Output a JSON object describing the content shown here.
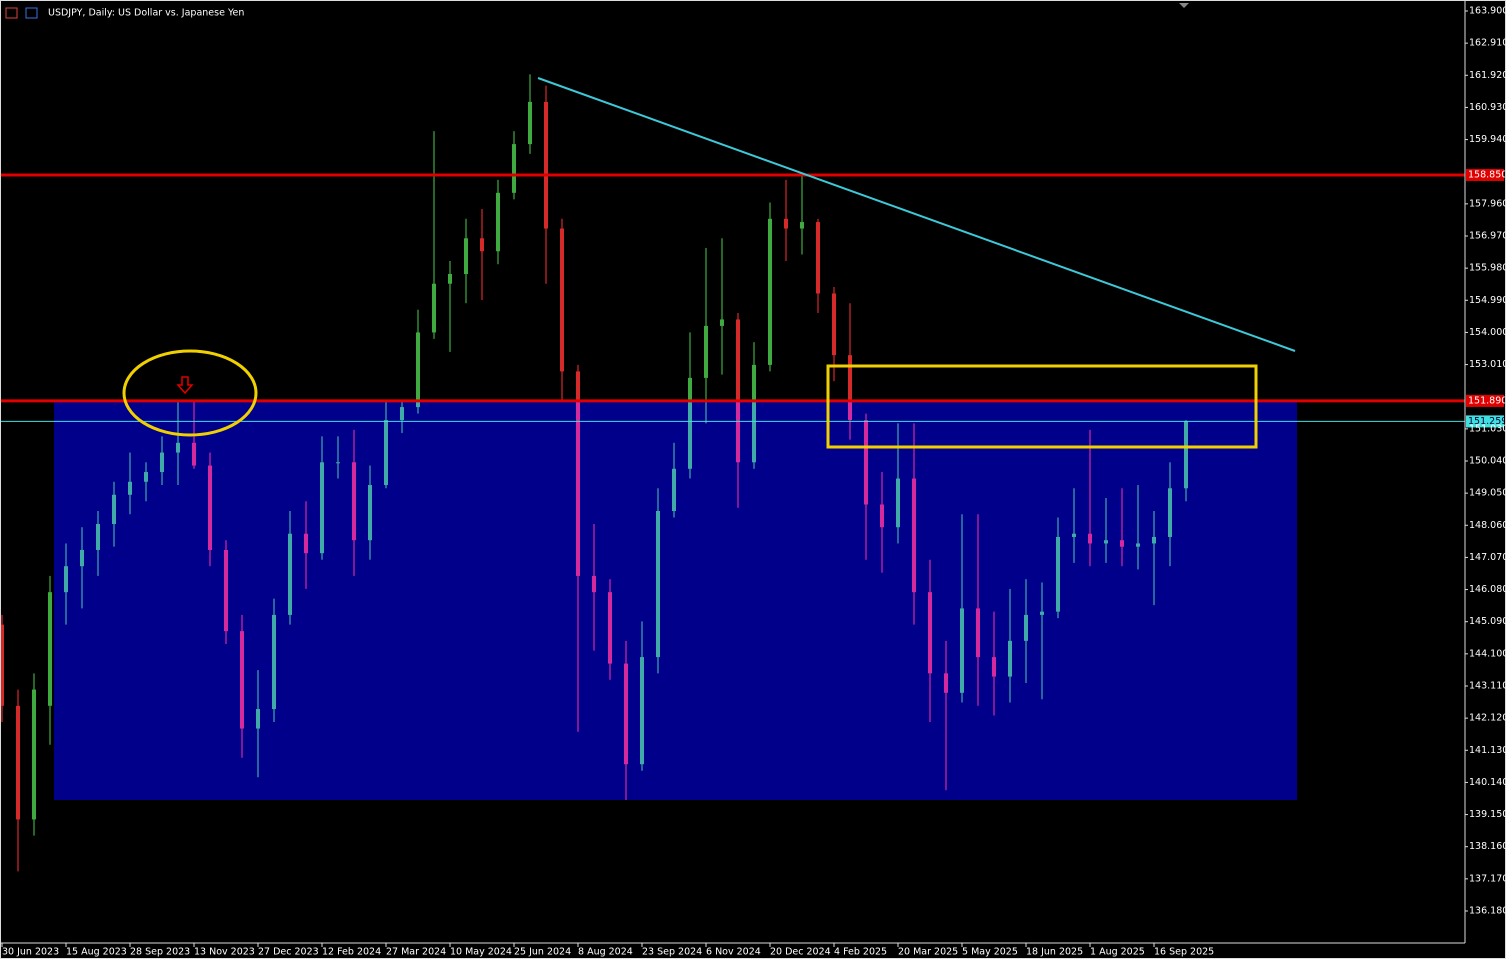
{
  "chart_data": {
    "type": "candlestick",
    "title": "USDJPY, Daily: US Dollar vs. Japanese Yen",
    "bull_color": "#3faa3f",
    "bear_color": "#d42a2a",
    "ylim": [
      135.194,
      164.239
    ],
    "xlim": [
      -0.125,
      91.4375
    ],
    "yticks": [
      {
        "value": 163.9,
        "label": "163.900"
      },
      {
        "value": 162.91,
        "label": "162.910"
      },
      {
        "value": 161.92,
        "label": "161.920"
      },
      {
        "value": 160.93,
        "label": "160.930"
      },
      {
        "value": 159.94,
        "label": "159.940"
      },
      {
        "value": 157.96,
        "label": "157.960"
      },
      {
        "value": 156.97,
        "label": "156.970"
      },
      {
        "value": 155.98,
        "label": "155.980"
      },
      {
        "value": 154.99,
        "label": "154.990"
      },
      {
        "value": 154,
        "label": "154.000"
      },
      {
        "value": 153.01,
        "label": "153.010"
      },
      {
        "value": 151.03,
        "label": "151.030"
      },
      {
        "value": 150.04,
        "label": "150.040"
      },
      {
        "value": 149.05,
        "label": "149.050"
      },
      {
        "value": 148.06,
        "label": "148.060"
      },
      {
        "value": 147.07,
        "label": "147.070"
      },
      {
        "value": 146.08,
        "label": "146.080"
      },
      {
        "value": 145.09,
        "label": "145.090"
      },
      {
        "value": 144.1,
        "label": "144.100"
      },
      {
        "value": 143.11,
        "label": "143.110"
      },
      {
        "value": 142.12,
        "label": "142.120"
      },
      {
        "value": 141.13,
        "label": "141.130"
      },
      {
        "value": 140.14,
        "label": "140.140"
      },
      {
        "value": 139.15,
        "label": "139.150"
      },
      {
        "value": 138.16,
        "label": "138.160"
      },
      {
        "value": 137.17,
        "label": "137.170"
      },
      {
        "value": 136.18,
        "label": "136.180"
      }
    ],
    "xticks": [
      {
        "value": 0,
        "label": "30 Jun 2023"
      },
      {
        "value": 4,
        "label": "15 Aug 2023"
      },
      {
        "value": 8,
        "label": "28 Sep 2023"
      },
      {
        "value": 12,
        "label": "13 Nov 2023"
      },
      {
        "value": 16,
        "label": "27 Dec 2023"
      },
      {
        "value": 20,
        "label": "12 Feb 2024"
      },
      {
        "value": 24,
        "label": "27 Mar 2024"
      },
      {
        "value": 28,
        "label": "10 May 2024"
      },
      {
        "value": 32,
        "label": "25 Jun 2024"
      },
      {
        "value": 36,
        "label": "8 Aug 2024"
      },
      {
        "value": 40,
        "label": "23 Sep 2024"
      },
      {
        "value": 44,
        "label": "6 Nov 2024"
      },
      {
        "value": 48,
        "label": "20 Dec 2024"
      },
      {
        "value": 52,
        "label": "4 Feb 2025"
      },
      {
        "value": 56,
        "label": "20 Mar 2025"
      },
      {
        "value": 60,
        "label": "5 May 2025"
      },
      {
        "value": 64,
        "label": "18 Jun 2025"
      },
      {
        "value": 68,
        "label": "1 Aug 2025"
      },
      {
        "value": 72,
        "label": "16 Sep 2025"
      }
    ],
    "price_lines": [
      {
        "value": 158.85,
        "label": "158.850",
        "color": "#e00000"
      },
      {
        "value": 151.89,
        "label": "151.890",
        "color": "#e00000"
      },
      {
        "value": 151.259,
        "label": "151.259",
        "color": "#40e0e0"
      }
    ],
    "ohlc": [
      [
        145,
        145.3,
        142,
        142.5
      ],
      [
        142.5,
        143,
        137.4,
        139
      ],
      [
        139,
        143.5,
        138.5,
        143
      ],
      [
        142.5,
        146.5,
        141.3,
        146
      ],
      [
        146,
        147.5,
        145,
        146.8
      ],
      [
        146.8,
        148,
        145.5,
        147.3
      ],
      [
        147.3,
        148.5,
        146.5,
        148.1
      ],
      [
        148.1,
        149.4,
        147.4,
        149
      ],
      [
        149,
        150.3,
        148.4,
        149.4
      ],
      [
        149.4,
        150,
        148.8,
        149.7
      ],
      [
        149.7,
        150.8,
        149.3,
        150.3
      ],
      [
        150.3,
        151.9,
        149.3,
        150.6
      ],
      [
        150.6,
        151.9,
        149.8,
        149.9
      ],
      [
        149.9,
        150.3,
        146.8,
        147.3
      ],
      [
        147.3,
        147.6,
        144.4,
        144.8
      ],
      [
        144.8,
        145.3,
        140.9,
        141.8
      ],
      [
        141.8,
        143.6,
        140.3,
        142.4
      ],
      [
        142.4,
        145.8,
        142,
        145.3
      ],
      [
        145.3,
        148.5,
        145,
        147.8
      ],
      [
        147.8,
        148.8,
        146.1,
        147.2
      ],
      [
        147.2,
        150.8,
        147,
        150
      ],
      [
        150,
        150.8,
        149.5,
        150
      ],
      [
        150,
        151,
        146.5,
        147.6
      ],
      [
        147.6,
        149.9,
        147,
        149.3
      ],
      [
        149.3,
        151.9,
        149.2,
        151.3
      ],
      [
        151.3,
        151.9,
        150.9,
        151.7
      ],
      [
        151.7,
        154.7,
        151.5,
        154
      ],
      [
        154,
        160.2,
        153.8,
        155.5
      ],
      [
        155.5,
        156.2,
        153.4,
        155.8
      ],
      [
        155.8,
        157.5,
        154.9,
        156.9
      ],
      [
        156.9,
        157.8,
        155,
        156.5
      ],
      [
        156.5,
        158.7,
        156.1,
        158.3
      ],
      [
        158.3,
        160.2,
        158.1,
        159.8
      ],
      [
        159.8,
        161.95,
        159.5,
        161.1
      ],
      [
        161.1,
        161.6,
        155.5,
        157.2
      ],
      [
        157.2,
        157.5,
        151.9,
        152.8
      ],
      [
        152.8,
        153,
        141.7,
        146.5
      ],
      [
        146.5,
        148.1,
        144.2,
        146
      ],
      [
        146,
        146.4,
        143.3,
        143.8
      ],
      [
        143.8,
        144.5,
        139.6,
        140.7
      ],
      [
        140.7,
        145.1,
        140.5,
        144
      ],
      [
        144,
        149.2,
        143.5,
        148.5
      ],
      [
        148.5,
        150.6,
        148.3,
        149.8
      ],
      [
        149.8,
        154,
        149.5,
        152.6
      ],
      [
        152.6,
        156.6,
        151.2,
        154.2
      ],
      [
        154.2,
        156.9,
        152.7,
        154.4
      ],
      [
        154.4,
        154.6,
        148.6,
        150
      ],
      [
        150,
        153.7,
        149.8,
        153
      ],
      [
        153,
        158,
        152.8,
        157.5
      ],
      [
        157.5,
        158.7,
        156.2,
        157.2
      ],
      [
        157.2,
        158.85,
        156.4,
        157.4
      ],
      [
        157.4,
        157.5,
        154.6,
        155.2
      ],
      [
        155.2,
        155.4,
        152.5,
        153.3
      ],
      [
        153.3,
        154.9,
        150.7,
        151.3
      ],
      [
        151.3,
        151.5,
        147,
        148.7
      ],
      [
        148.7,
        149.7,
        146.6,
        148
      ],
      [
        148,
        151.2,
        147.5,
        149.5
      ],
      [
        149.5,
        151.2,
        145,
        146
      ],
      [
        146,
        147,
        142,
        143.5
      ],
      [
        143.5,
        144.5,
        139.9,
        142.9
      ],
      [
        142.9,
        148.4,
        142.6,
        145.5
      ],
      [
        145.5,
        148.4,
        142.5,
        144
      ],
      [
        144,
        145.4,
        142.2,
        143.4
      ],
      [
        143.4,
        146.1,
        142.6,
        144.5
      ],
      [
        144.5,
        146.4,
        143.2,
        145.3
      ],
      [
        145.3,
        146.3,
        142.7,
        145.4
      ],
      [
        145.4,
        148.3,
        145.2,
        147.7
      ],
      [
        147.7,
        149.2,
        146.9,
        147.8
      ],
      [
        147.8,
        151,
        146.8,
        147.5
      ],
      [
        147.5,
        148.9,
        146.9,
        147.6
      ],
      [
        147.6,
        149.2,
        146.8,
        147.4
      ],
      [
        147.4,
        149.3,
        146.7,
        147.5
      ],
      [
        147.5,
        148.5,
        145.6,
        147.7
      ],
      [
        147.7,
        150,
        146.8,
        149.2
      ],
      [
        149.2,
        151.3,
        148.8,
        151.26
      ]
    ]
  }
}
